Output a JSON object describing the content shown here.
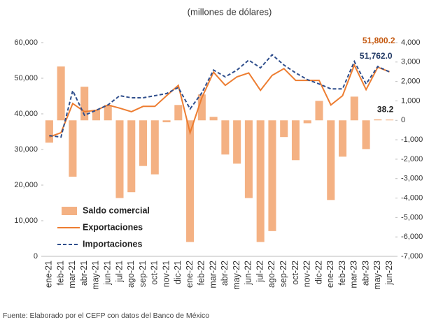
{
  "chart_data": {
    "type": "bar",
    "title": "(millones de dólares)",
    "source": "Fuente: Elaborado por el CEFP con datos del Banco de México",
    "categories": [
      "ene-21",
      "feb-21",
      "mar-21",
      "abr-21",
      "may-21",
      "jun-21",
      "jul-21",
      "ago-21",
      "sep-21",
      "oct-21",
      "nov-21",
      "dic-21",
      "ene-22",
      "feb-22",
      "mar-22",
      "abr-22",
      "may-22",
      "jun-22",
      "jul-22",
      "ago-22",
      "sep-22",
      "oct-22",
      "nov-22",
      "dic-22",
      "ene-23",
      "feb-23",
      "mar-23",
      "abr-23",
      "may-23",
      "jun-23"
    ],
    "series": [
      {
        "name": "Saldo comercial",
        "type": "bar",
        "axis": "y2",
        "color": "#f4b183",
        "values": [
          -1150,
          2770,
          -2900,
          1730,
          540,
          790,
          -4000,
          -3700,
          -2350,
          -2780,
          -100,
          790,
          -6260,
          1330,
          180,
          -1760,
          -2230,
          -4000,
          -6260,
          -5700,
          -860,
          -2050,
          -150,
          1000,
          -4100,
          -1870,
          1220,
          -1480,
          50,
          38.2
        ],
        "value_labels": [
          null,
          null,
          null,
          null,
          null,
          null,
          null,
          null,
          null,
          null,
          null,
          null,
          null,
          null,
          null,
          null,
          null,
          null,
          null,
          null,
          null,
          null,
          null,
          null,
          null,
          null,
          null,
          null,
          null,
          "38.2"
        ],
        "label_color": "#222"
      },
      {
        "name": "Exportaciones",
        "type": "line",
        "color": "#ed7d31",
        "dashed": false,
        "values": [
          33500,
          34700,
          42900,
          40600,
          41000,
          42500,
          41600,
          40600,
          42100,
          42100,
          45100,
          48000,
          34700,
          44500,
          51700,
          48000,
          50400,
          51500,
          46600,
          50800,
          52700,
          49400,
          49400,
          49400,
          42500,
          45100,
          53700,
          46800,
          53100,
          51800.2
        ],
        "value_labels": [
          null,
          null,
          null,
          null,
          null,
          null,
          null,
          null,
          null,
          null,
          null,
          null,
          null,
          null,
          null,
          null,
          null,
          null,
          null,
          null,
          null,
          null,
          null,
          null,
          null,
          null,
          null,
          null,
          null,
          "51,800.2"
        ],
        "label_color": "#c55a11"
      },
      {
        "name": "Importaciones",
        "type": "line",
        "color": "#2f4e8c",
        "dashed": true,
        "values": [
          33900,
          33500,
          46500,
          39600,
          41000,
          42500,
          45100,
          44500,
          44500,
          45100,
          45700,
          47400,
          41400,
          45900,
          52300,
          50400,
          52300,
          55100,
          52900,
          56600,
          53700,
          51500,
          49600,
          48400,
          47000,
          47000,
          54700,
          48400,
          53300,
          51762.0
        ],
        "value_labels": [
          null,
          null,
          null,
          null,
          null,
          null,
          null,
          null,
          null,
          null,
          null,
          null,
          null,
          null,
          null,
          null,
          null,
          null,
          null,
          null,
          null,
          null,
          null,
          null,
          null,
          null,
          null,
          null,
          null,
          "51,762.0"
        ],
        "label_color": "#203864"
      }
    ],
    "ylim": [
      0,
      60000
    ],
    "yticks": [
      0,
      {
        "value": 10000,
        "label": "10,000"
      },
      {
        "value": 20000,
        "label": "20,000"
      },
      {
        "value": 30000,
        "label": "30,000"
      },
      {
        "value": 40000,
        "label": "40,000"
      },
      {
        "value": 50000,
        "label": "50,000"
      },
      {
        "value": 60000,
        "label": "60,000"
      }
    ],
    "y2lim": [
      -7000,
      4000
    ],
    "y2ticks": [
      {
        "value": -7000,
        "label": "-7,000"
      },
      {
        "value": -6000,
        "label": "-6,000"
      },
      {
        "value": -5000,
        "label": "-5,000"
      },
      {
        "value": -4000,
        "label": "-4,000"
      },
      {
        "value": -3000,
        "label": "-3,000"
      },
      {
        "value": -2000,
        "label": "-2,000"
      },
      {
        "value": -1000,
        "label": "-1,000"
      },
      0,
      {
        "value": 1000,
        "label": "1,000"
      },
      {
        "value": 2000,
        "label": "2,000"
      },
      {
        "value": 3000,
        "label": "3,000"
      },
      {
        "value": 4000,
        "label": "4,000"
      }
    ],
    "grid": false,
    "legend": "lower-left"
  }
}
